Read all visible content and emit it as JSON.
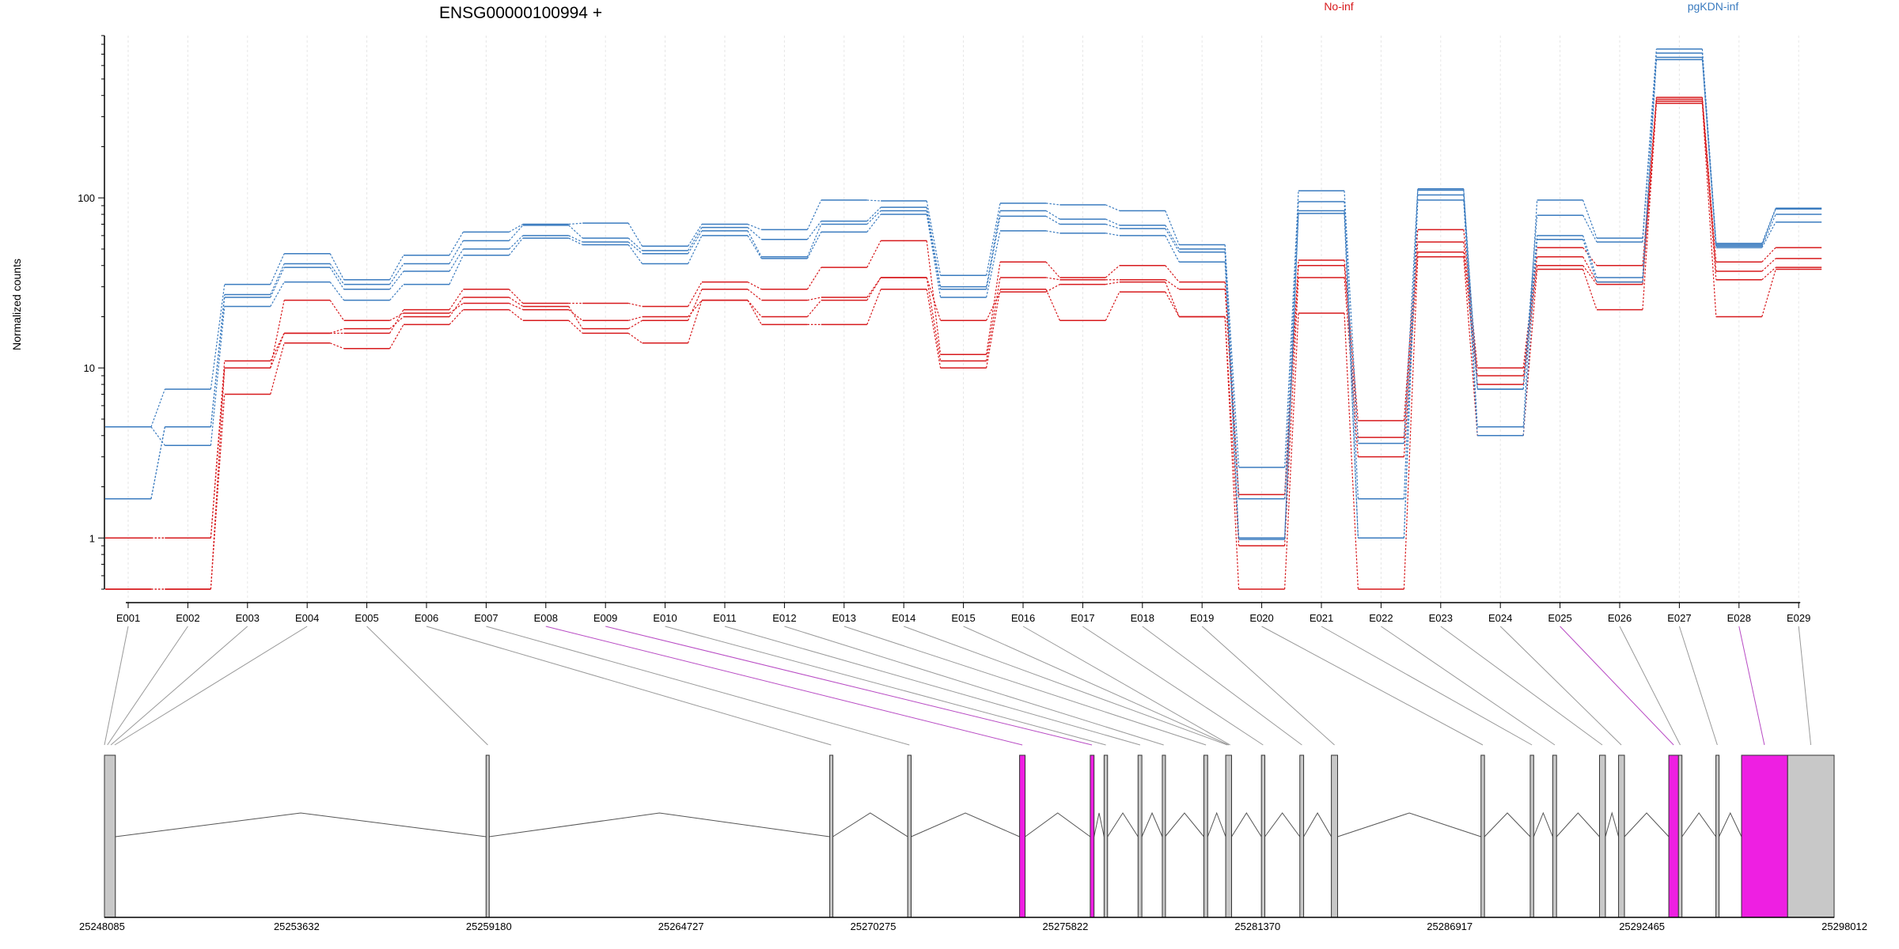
{
  "title": "ENSG00000100994 +",
  "colors": {
    "noinf": "#d7191c",
    "pgkdn": "#3a7bbf",
    "exon": "#c8c8c8",
    "highlight": "#ee1fe2",
    "grid": "#e6e6e6"
  },
  "chart_data": {
    "type": "line",
    "title": "ENSG00000100994 +",
    "ylabel": "Normalized counts",
    "yscale": "log",
    "ylim": [
      0.5,
      900
    ],
    "yticks": [
      1,
      10,
      100
    ],
    "grid": "vertical dotted",
    "legend": [
      "No-inf",
      "pgKDN-inf"
    ],
    "categories": [
      "E001",
      "E002",
      "E003",
      "E004",
      "E005",
      "E006",
      "E007",
      "E008",
      "E009",
      "E010",
      "E011",
      "E012",
      "E013",
      "E014",
      "E015",
      "E016",
      "E017",
      "E018",
      "E019",
      "E020",
      "E021",
      "E022",
      "E023",
      "E024",
      "E025",
      "E026",
      "E027",
      "E028",
      "E029"
    ],
    "series": [
      {
        "name": "No-inf",
        "values": [
          1.0,
          1.0,
          11,
          16,
          16,
          22,
          29,
          24,
          24,
          23,
          32,
          29,
          39,
          56,
          12,
          42,
          34,
          40,
          32,
          1.8,
          43,
          4.9,
          65,
          10,
          51,
          40,
          390,
          42,
          51
        ]
      },
      {
        "name": "No-inf",
        "values": [
          1.0,
          1.0,
          10,
          16,
          17,
          20,
          26,
          23,
          17,
          19,
          29,
          25,
          26,
          34,
          11,
          34,
          33,
          33,
          29,
          1.7,
          40,
          3.9,
          55,
          9,
          45,
          32,
          380,
          37,
          44
        ]
      },
      {
        "name": "No-inf",
        "values": [
          0.5,
          0.5,
          7,
          14,
          13,
          18,
          22,
          19,
          16,
          14,
          25,
          18,
          18,
          29,
          10,
          29,
          19,
          28,
          20,
          0.5,
          21,
          0.5,
          45,
          4,
          38,
          22,
          360,
          20,
          38
        ]
      },
      {
        "name": "No-inf",
        "values": [
          0.5,
          0.5,
          10,
          25,
          19,
          21,
          24,
          22,
          19,
          20,
          25,
          20,
          25,
          34,
          19,
          28,
          31,
          32,
          20,
          0.9,
          34,
          3.0,
          48,
          8,
          40,
          31,
          370,
          33,
          39
        ]
      },
      {
        "name": "pgKDN-inf",
        "values": [
          4.5,
          7.5,
          31,
          47,
          33,
          46,
          63,
          70,
          71,
          52,
          70,
          65,
          97,
          96,
          35,
          93,
          91,
          84,
          53,
          2.6,
          110,
          3.6,
          113,
          4.5,
          97,
          58,
          750,
          54,
          87
        ]
      },
      {
        "name": "pgKDN-inf",
        "values": [
          1.7,
          4.5,
          27,
          41,
          31,
          41,
          56,
          69,
          58,
          49,
          67,
          57,
          73,
          88,
          30,
          84,
          75,
          69,
          50,
          1.7,
          95,
          1.7,
          111,
          7.5,
          79,
          55,
          710,
          53,
          86
        ]
      },
      {
        "name": "pgKDN-inf",
        "values": [
          1.7,
          4.5,
          26,
          39,
          29,
          37,
          50,
          60,
          55,
          47,
          64,
          45,
          70,
          84,
          29,
          78,
          70,
          66,
          48,
          1.0,
          84,
          1.0,
          104,
          7.5,
          60,
          34,
          670,
          52,
          80
        ]
      },
      {
        "name": "pgKDN-inf",
        "values": [
          4.5,
          3.5,
          23,
          32,
          25,
          31,
          46,
          58,
          53,
          41,
          60,
          44,
          63,
          80,
          26,
          64,
          62,
          60,
          42,
          0.98,
          81,
          1.0,
          97,
          4.0,
          57,
          32,
          650,
          51,
          72
        ]
      }
    ]
  },
  "gene_model": {
    "coordinate_labels": [
      "25248085",
      "25253632",
      "25259180",
      "25264727",
      "25270275",
      "25275822",
      "25281370",
      "25286917",
      "25292465",
      "25298012"
    ],
    "range": [
      25248085,
      25298012
    ],
    "exons": [
      {
        "start": 25248085,
        "end": 25248400
      },
      {
        "start": 25259100,
        "end": 25259190
      },
      {
        "start": 25269020,
        "end": 25269110
      },
      {
        "start": 25271270,
        "end": 25271370
      },
      {
        "start": 25274500,
        "end": 25274660,
        "highlight": true
      },
      {
        "start": 25276540,
        "end": 25276650,
        "highlight": true
      },
      {
        "start": 25276940,
        "end": 25277040
      },
      {
        "start": 25277920,
        "end": 25278030
      },
      {
        "start": 25278620,
        "end": 25278700
      },
      {
        "start": 25279820,
        "end": 25279930
      },
      {
        "start": 25280450,
        "end": 25280620
      },
      {
        "start": 25281480,
        "end": 25281580
      },
      {
        "start": 25282590,
        "end": 25282700
      },
      {
        "start": 25283500,
        "end": 25283680
      },
      {
        "start": 25287820,
        "end": 25287920
      },
      {
        "start": 25289240,
        "end": 25289340
      },
      {
        "start": 25289890,
        "end": 25290000
      },
      {
        "start": 25291240,
        "end": 25291410
      },
      {
        "start": 25291790,
        "end": 25291960
      },
      {
        "start": 25293240,
        "end": 25293520,
        "highlight": true
      },
      {
        "start": 25293520,
        "end": 25293620
      },
      {
        "start": 25294600,
        "end": 25294690
      },
      {
        "start": 25295340,
        "end": 25296670,
        "highlight": true
      },
      {
        "start": 25296670,
        "end": 25298012
      }
    ],
    "bin_targets": [
      {
        "bin": 1,
        "pos": 25248085
      },
      {
        "bin": 2,
        "pos": 25248170
      },
      {
        "bin": 3,
        "pos": 25248270
      },
      {
        "bin": 4,
        "pos": 25248380
      },
      {
        "bin": 5,
        "pos": 25259150
      },
      {
        "bin": 6,
        "pos": 25269060
      },
      {
        "bin": 7,
        "pos": 25271320
      },
      {
        "bin": 8,
        "pos": 25274580,
        "highlight": true
      },
      {
        "bin": 9,
        "pos": 25276590,
        "highlight": true
      },
      {
        "bin": 10,
        "pos": 25276990
      },
      {
        "bin": 11,
        "pos": 25277980
      },
      {
        "bin": 12,
        "pos": 25278660
      },
      {
        "bin": 13,
        "pos": 25279880
      },
      {
        "bin": 14,
        "pos": 25280500
      },
      {
        "bin": 15,
        "pos": 25280540
      },
      {
        "bin": 16,
        "pos": 25280580
      },
      {
        "bin": 17,
        "pos": 25281530
      },
      {
        "bin": 18,
        "pos": 25282650
      },
      {
        "bin": 19,
        "pos": 25283590
      },
      {
        "bin": 20,
        "pos": 25287870
      },
      {
        "bin": 21,
        "pos": 25289290
      },
      {
        "bin": 22,
        "pos": 25289950
      },
      {
        "bin": 23,
        "pos": 25291320
      },
      {
        "bin": 24,
        "pos": 25291870
      },
      {
        "bin": 25,
        "pos": 25293380,
        "highlight": true
      },
      {
        "bin": 26,
        "pos": 25293570
      },
      {
        "bin": 27,
        "pos": 25294640
      },
      {
        "bin": 28,
        "pos": 25296000,
        "highlight": true
      },
      {
        "bin": 29,
        "pos": 25297340
      }
    ]
  }
}
